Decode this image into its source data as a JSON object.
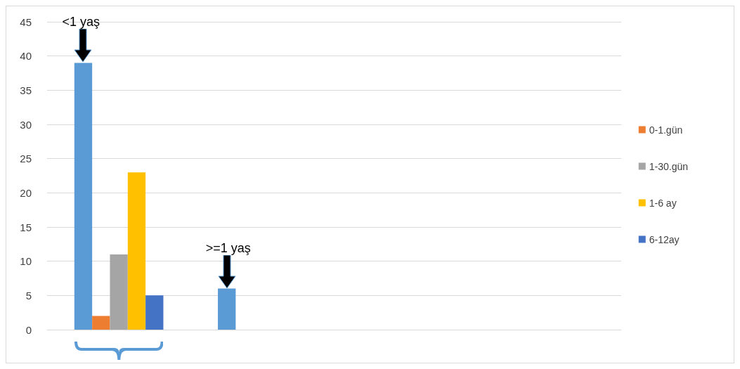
{
  "chart_data": {
    "type": "bar",
    "categories": [
      null,
      null,
      null,
      null
    ],
    "series": [
      {
        "color": "#5b9bd5",
        "values": [
          39,
          6,
          null,
          null
        ]
      },
      {
        "name": "0-1.gün",
        "color": "#ed7d31",
        "values": [
          2,
          null,
          null,
          null
        ]
      },
      {
        "name": "1-30.gün",
        "color": "#a5a5a5",
        "values": [
          11,
          null,
          null,
          null
        ]
      },
      {
        "name": "1-6 ay",
        "color": "#ffc000",
        "values": [
          23,
          null,
          null,
          null
        ]
      },
      {
        "name": "6-12ay",
        "color": "#4472c4",
        "values": [
          5,
          null,
          null,
          null
        ]
      }
    ],
    "ylim": [
      0,
      45
    ],
    "yticks": [
      0,
      5,
      10,
      15,
      20,
      25,
      30,
      35,
      40,
      45
    ],
    "grid": "y",
    "legend": "right",
    "annotations": [
      {
        "text": "<1 yaş",
        "y": 39
      },
      {
        "text": ">=1 yaş",
        "y": 6
      }
    ]
  }
}
